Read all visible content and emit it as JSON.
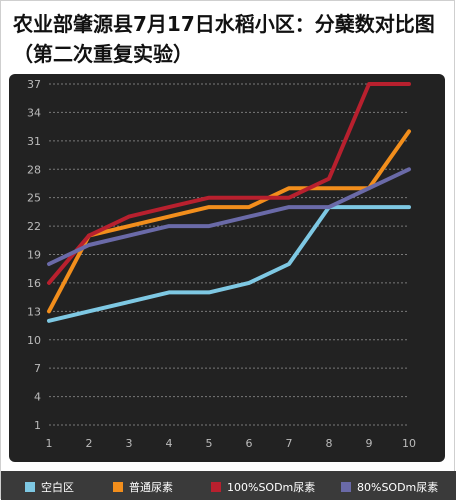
{
  "title": "农业部肇源县7月17日水稻小区：分蘖数对比图（第二次重复实验）",
  "colors": {
    "background": "#222222",
    "grid": "#7a7a7a",
    "axis_text": "#bbbbbb",
    "legend_bar": "#3a3a3a"
  },
  "chart_data": {
    "type": "line",
    "title": "农业部肇源县7月17日水稻小区：分蘖数对比图（第二次重复实验）",
    "xlabel": "",
    "ylabel": "",
    "x": [
      "1",
      "2",
      "3",
      "4",
      "5",
      "6",
      "7",
      "8",
      "9",
      "10"
    ],
    "y_ticks": [
      "1",
      "4",
      "7",
      "10",
      "13",
      "16",
      "19",
      "22",
      "25",
      "28",
      "31",
      "34",
      "37"
    ],
    "ylim": [
      1,
      37
    ],
    "grid": true,
    "legend_position": "bottom",
    "series": [
      {
        "name": "空白区",
        "color": "#7ec8e3",
        "values": [
          12,
          13,
          14,
          15,
          15,
          16,
          18,
          24,
          24,
          24
        ]
      },
      {
        "name": "普通尿素",
        "color": "#f28e1c",
        "values": [
          13,
          21,
          22,
          23,
          24,
          24,
          26,
          26,
          26,
          32
        ]
      },
      {
        "name": "100%SODm尿素",
        "color": "#b8202e",
        "values": [
          16,
          21,
          23,
          24,
          25,
          25,
          25,
          27,
          37,
          37
        ]
      },
      {
        "name": "80%SODm尿素",
        "color": "#6a6aa8",
        "values": [
          18,
          20,
          21,
          22,
          22,
          23,
          24,
          24,
          26,
          28
        ]
      }
    ]
  }
}
